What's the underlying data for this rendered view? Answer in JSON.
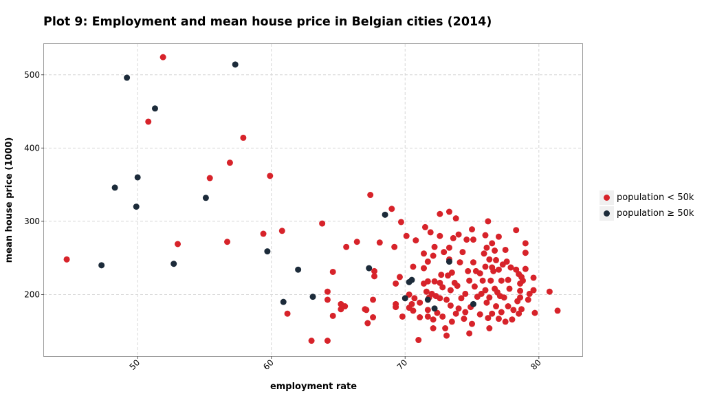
{
  "chart_data": {
    "type": "scatter",
    "title": "Plot 9: Employment and mean house price in Belgian cities (2014)",
    "xlabel": "employment rate",
    "ylabel": "mean house price (1000)",
    "xlim": [
      43,
      83.3
    ],
    "ylim": [
      116,
      542
    ],
    "xticks": [
      50,
      60,
      70,
      80
    ],
    "yticks": [
      200,
      300,
      400,
      500
    ],
    "grid": true,
    "legend_position": "right",
    "series": [
      {
        "name": "population < 50k",
        "color": "#d7232a",
        "points": [
          [
            44.7,
            248
          ],
          [
            51.9,
            524
          ],
          [
            50.8,
            436
          ],
          [
            57.9,
            414
          ],
          [
            56.9,
            380
          ],
          [
            55.4,
            359
          ],
          [
            59.9,
            362
          ],
          [
            53.0,
            269
          ],
          [
            56.7,
            272
          ],
          [
            59.4,
            283
          ],
          [
            60.8,
            287
          ],
          [
            63.8,
            297
          ],
          [
            61.2,
            174
          ],
          [
            63.0,
            137
          ],
          [
            64.2,
            137
          ],
          [
            64.2,
            204
          ],
          [
            64.2,
            193
          ],
          [
            64.6,
            171
          ],
          [
            64.6,
            231
          ],
          [
            65.2,
            187
          ],
          [
            65.2,
            180
          ],
          [
            65.5,
            184
          ],
          [
            65.6,
            265
          ],
          [
            66.4,
            272
          ],
          [
            67.0,
            180
          ],
          [
            67.1,
            179
          ],
          [
            67.2,
            161
          ],
          [
            67.4,
            336
          ],
          [
            67.6,
            193
          ],
          [
            67.6,
            169
          ],
          [
            67.7,
            225
          ],
          [
            67.7,
            232
          ],
          [
            68.1,
            271
          ],
          [
            69.0,
            317
          ],
          [
            69.2,
            265
          ],
          [
            69.3,
            215
          ],
          [
            69.3,
            187
          ],
          [
            69.3,
            183
          ],
          [
            69.6,
            224
          ],
          [
            69.7,
            299
          ],
          [
            69.8,
            170
          ],
          [
            70.1,
            280
          ],
          [
            70.3,
            182
          ],
          [
            70.3,
            200
          ],
          [
            70.5,
            187
          ],
          [
            70.6,
            238
          ],
          [
            70.6,
            178
          ],
          [
            70.7,
            195
          ],
          [
            70.8,
            274
          ],
          [
            71.0,
            138
          ],
          [
            71.1,
            189
          ],
          [
            71.1,
            169
          ],
          [
            71.4,
            236
          ],
          [
            71.4,
            256
          ],
          [
            71.4,
            215
          ],
          [
            71.5,
            292
          ],
          [
            71.6,
            204
          ],
          [
            71.7,
            179
          ],
          [
            71.7,
            245
          ],
          [
            71.7,
            218
          ],
          [
            71.7,
            170
          ],
          [
            71.8,
            196
          ],
          [
            71.9,
            285
          ],
          [
            72.0,
            201
          ],
          [
            72.1,
            166
          ],
          [
            72.1,
            253
          ],
          [
            72.1,
            154
          ],
          [
            72.2,
            218
          ],
          [
            72.2,
            265
          ],
          [
            72.3,
            198
          ],
          [
            72.4,
            175
          ],
          [
            72.6,
            216
          ],
          [
            72.6,
            280
          ],
          [
            72.6,
            310
          ],
          [
            72.6,
            195
          ],
          [
            72.7,
            227
          ],
          [
            72.8,
            170
          ],
          [
            72.8,
            210
          ],
          [
            72.9,
            258
          ],
          [
            73.0,
            154
          ],
          [
            73.1,
            193
          ],
          [
            73.1,
            144
          ],
          [
            73.2,
            226
          ],
          [
            73.3,
            313
          ],
          [
            73.3,
            248
          ],
          [
            73.3,
            264
          ],
          [
            73.4,
            206
          ],
          [
            73.4,
            185
          ],
          [
            73.5,
            163
          ],
          [
            73.5,
            230
          ],
          [
            73.6,
            277
          ],
          [
            73.7,
            216
          ],
          [
            73.8,
            304
          ],
          [
            73.8,
            174
          ],
          [
            73.9,
            212
          ],
          [
            74.0,
            282
          ],
          [
            74.0,
            181
          ],
          [
            74.1,
            244
          ],
          [
            74.2,
            195
          ],
          [
            74.3,
            258
          ],
          [
            74.4,
            167
          ],
          [
            74.5,
            201
          ],
          [
            74.5,
            176
          ],
          [
            74.6,
            275
          ],
          [
            74.7,
            232
          ],
          [
            74.8,
            219
          ],
          [
            74.8,
            147
          ],
          [
            74.9,
            183
          ],
          [
            75.0,
            160
          ],
          [
            75.0,
            289
          ],
          [
            75.1,
            275
          ],
          [
            75.1,
            244
          ],
          [
            75.2,
            211
          ],
          [
            75.3,
            232
          ],
          [
            75.4,
            197
          ],
          [
            75.6,
            229
          ],
          [
            75.6,
            173
          ],
          [
            75.7,
            201
          ],
          [
            75.8,
            219
          ],
          [
            75.9,
            256
          ],
          [
            76.0,
            281
          ],
          [
            76.0,
            238
          ],
          [
            76.0,
            206
          ],
          [
            76.1,
            264
          ],
          [
            76.1,
            189
          ],
          [
            76.2,
            300
          ],
          [
            76.2,
            168
          ],
          [
            76.3,
            248
          ],
          [
            76.3,
            196
          ],
          [
            76.3,
            154
          ],
          [
            76.4,
            219
          ],
          [
            76.5,
            270
          ],
          [
            76.5,
            237
          ],
          [
            76.5,
            174
          ],
          [
            76.6,
            232
          ],
          [
            76.7,
            208
          ],
          [
            76.7,
            260
          ],
          [
            76.8,
            247
          ],
          [
            76.8,
            184
          ],
          [
            76.9,
            203
          ],
          [
            77.0,
            279
          ],
          [
            77.0,
            234
          ],
          [
            77.0,
            167
          ],
          [
            77.1,
            198
          ],
          [
            77.2,
            219
          ],
          [
            77.2,
            176
          ],
          [
            77.3,
            241
          ],
          [
            77.4,
            196
          ],
          [
            77.5,
            261
          ],
          [
            77.5,
            163
          ],
          [
            77.6,
            245
          ],
          [
            77.7,
            220
          ],
          [
            77.7,
            184
          ],
          [
            77.8,
            208
          ],
          [
            77.9,
            237
          ],
          [
            78.0,
            166
          ],
          [
            78.1,
            179
          ],
          [
            78.3,
            288
          ],
          [
            78.3,
            234
          ],
          [
            78.4,
            191
          ],
          [
            78.5,
            228
          ],
          [
            78.5,
            174
          ],
          [
            78.6,
            205
          ],
          [
            78.6,
            215
          ],
          [
            78.6,
            196
          ],
          [
            78.7,
            224
          ],
          [
            78.7,
            180
          ],
          [
            78.8,
            219
          ],
          [
            79.0,
            270
          ],
          [
            79.0,
            257
          ],
          [
            79.0,
            235
          ],
          [
            79.2,
            193
          ],
          [
            79.3,
            201
          ],
          [
            79.6,
            223
          ],
          [
            79.6,
            206
          ],
          [
            79.7,
            175
          ],
          [
            80.8,
            204
          ],
          [
            81.4,
            178
          ]
        ]
      },
      {
        "name": "population ≥ 50k",
        "color": "#1c2b3a",
        "points": [
          [
            47.3,
            240
          ],
          [
            48.3,
            346
          ],
          [
            49.2,
            496
          ],
          [
            49.9,
            320
          ],
          [
            50.0,
            360
          ],
          [
            51.3,
            454
          ],
          [
            52.7,
            242
          ],
          [
            55.1,
            332
          ],
          [
            57.3,
            514
          ],
          [
            59.7,
            259
          ],
          [
            60.9,
            190
          ],
          [
            62.0,
            234
          ],
          [
            63.1,
            197
          ],
          [
            67.3,
            236
          ],
          [
            68.5,
            309
          ],
          [
            70.0,
            195
          ],
          [
            70.3,
            217
          ],
          [
            70.5,
            220
          ],
          [
            71.7,
            193
          ],
          [
            72.2,
            181
          ],
          [
            73.3,
            245
          ],
          [
            75.1,
            187
          ]
        ]
      }
    ]
  }
}
